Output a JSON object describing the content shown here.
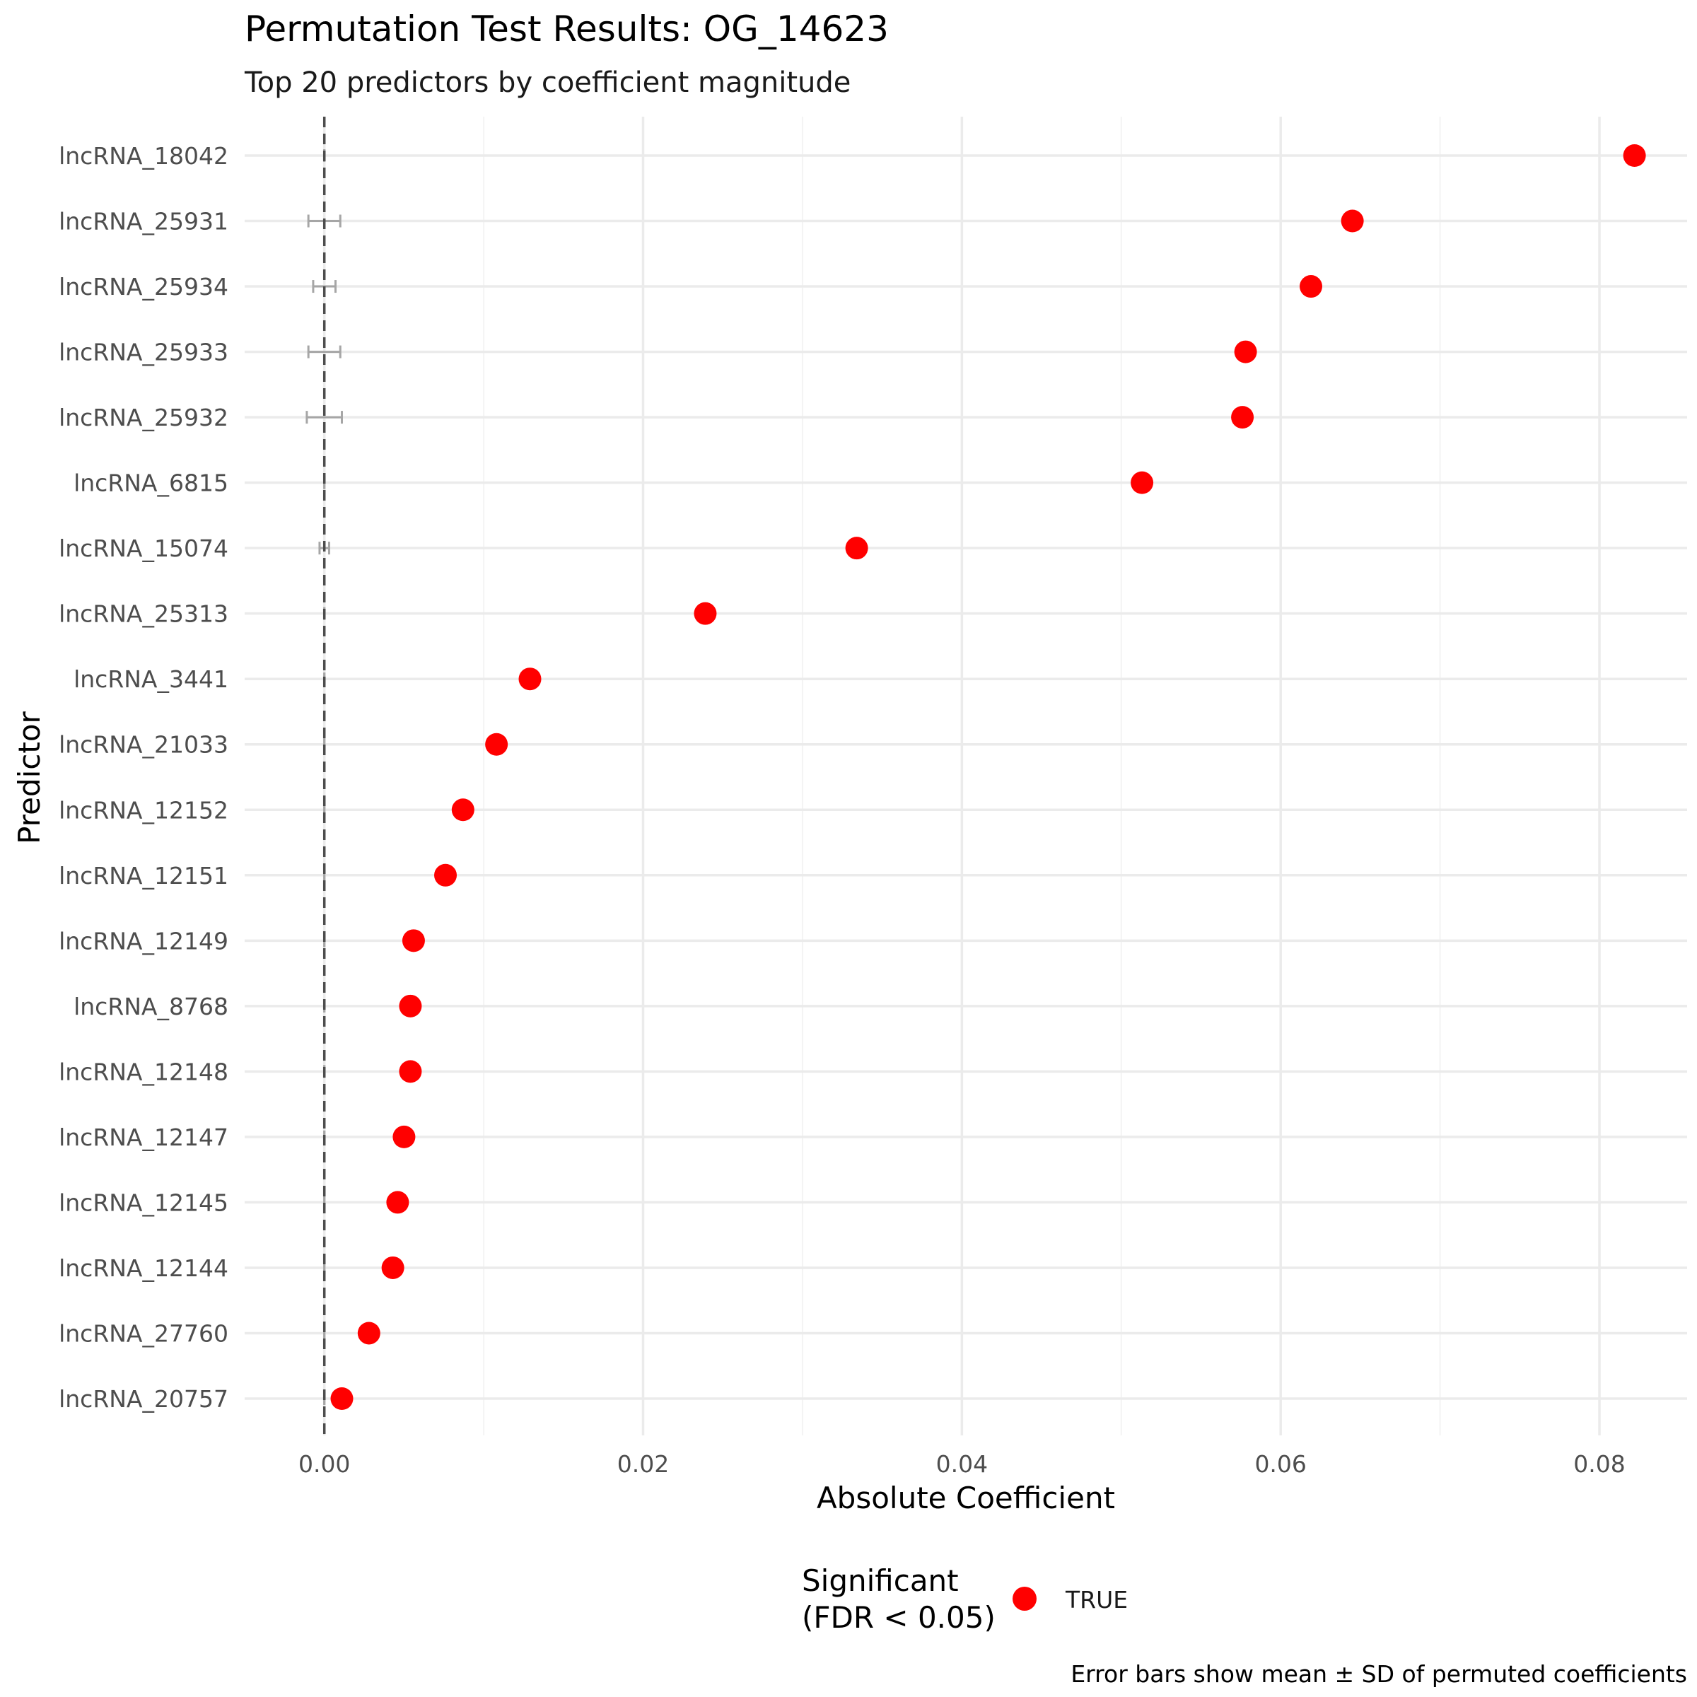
{
  "chart_data": {
    "type": "scatter",
    "title": "Permutation Test Results: OG_14623",
    "subtitle": "Top 20 predictors by coefficient magnitude",
    "xlabel": "Absolute Coefficient",
    "ylabel": "Predictor",
    "caption": "Error bars show mean ± SD of permuted coefficients",
    "xlim": [
      -0.005,
      0.0855
    ],
    "x_ticks": [
      0.0,
      0.02,
      0.04,
      0.06,
      0.08
    ],
    "x_tick_labels": [
      "0.00",
      "0.02",
      "0.04",
      "0.06",
      "0.08"
    ],
    "reference_line": {
      "x": 0,
      "style": "dashed",
      "color": "#4d4d4d"
    },
    "grid": true,
    "legend": {
      "title_lines": [
        "Significant",
        "(FDR < 0.05)"
      ],
      "placement": "bottom",
      "entries": [
        {
          "label": "TRUE",
          "color": "#ff0000"
        }
      ]
    },
    "point_color": "#ff0000",
    "errorbar_color": "#a6a6a6",
    "categories": [
      "lncRNA_18042",
      "lncRNA_25931",
      "lncRNA_25934",
      "lncRNA_25933",
      "lncRNA_25932",
      "lncRNA_6815",
      "lncRNA_15074",
      "lncRNA_25313",
      "lncRNA_3441",
      "lncRNA_21033",
      "lncRNA_12152",
      "lncRNA_12151",
      "lncRNA_12149",
      "lncRNA_8768",
      "lncRNA_12148",
      "lncRNA_12147",
      "lncRNA_12145",
      "lncRNA_12144",
      "lncRNA_27760",
      "lncRNA_20757"
    ],
    "values": [
      0.0822,
      0.0645,
      0.0619,
      0.0578,
      0.0576,
      0.0513,
      0.0334,
      0.0239,
      0.0129,
      0.0108,
      0.0087,
      0.0076,
      0.0056,
      0.0054,
      0.0054,
      0.005,
      0.0046,
      0.0043,
      0.0028,
      0.0011
    ],
    "permuted_mean": [
      0,
      0,
      0,
      0,
      0,
      0,
      0,
      0,
      0,
      0,
      0,
      0,
      0,
      0,
      0,
      0,
      0,
      0,
      0,
      0
    ],
    "permuted_sd": [
      0.0,
      0.001,
      0.0007,
      0.001,
      0.0011,
      0.0,
      0.0003,
      0.0,
      0.0,
      0.0,
      0.0,
      0.0,
      0.0,
      0.0,
      0.0,
      0.0,
      0.0,
      0.0,
      0.0,
      0.0
    ]
  }
}
